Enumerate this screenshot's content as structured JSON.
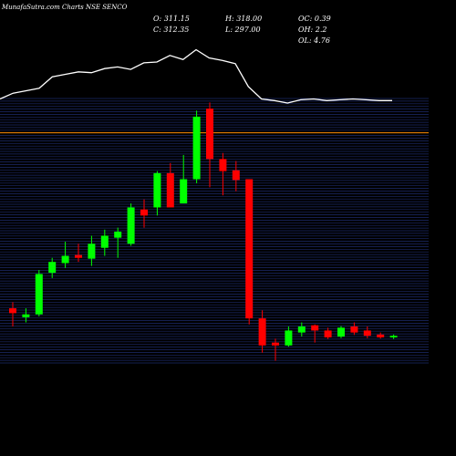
{
  "header": {
    "title": "MunafaSutra.com Charts NSE SENCO",
    "open": "O: 311.15",
    "close": "C: 312.35",
    "high": "H: 318.00",
    "low": "L: 297.00",
    "oc": "OC: 0.39",
    "oh": "OH: 2.2",
    "ol": "OL: 4.76"
  },
  "colors": {
    "background": "#000000",
    "up": "#00ff00",
    "down": "#ff0000",
    "grid": "#1c2a6a",
    "line": "#ffffff",
    "level": "#ff8c00"
  },
  "chart_data": {
    "type": "candlestick",
    "candles": [
      {
        "open": 640,
        "high": 655,
        "low": 595,
        "close": 628
      },
      {
        "open": 618,
        "high": 640,
        "low": 605,
        "close": 625
      },
      {
        "open": 625,
        "high": 735,
        "low": 620,
        "close": 725
      },
      {
        "open": 728,
        "high": 765,
        "low": 715,
        "close": 755
      },
      {
        "open": 752,
        "high": 805,
        "low": 740,
        "close": 770
      },
      {
        "open": 772,
        "high": 800,
        "low": 755,
        "close": 765
      },
      {
        "open": 763,
        "high": 820,
        "low": 745,
        "close": 800
      },
      {
        "open": 790,
        "high": 835,
        "low": 770,
        "close": 820
      },
      {
        "open": 815,
        "high": 840,
        "low": 765,
        "close": 830
      },
      {
        "open": 800,
        "high": 900,
        "low": 795,
        "close": 890
      },
      {
        "open": 885,
        "high": 910,
        "low": 840,
        "close": 870
      },
      {
        "open": 890,
        "high": 980,
        "low": 870,
        "close": 975
      },
      {
        "open": 975,
        "high": 1000,
        "low": 895,
        "close": 890
      },
      {
        "open": 900,
        "high": 1020,
        "low": 900,
        "close": 960
      },
      {
        "open": 960,
        "high": 1130,
        "low": 950,
        "close": 1115
      },
      {
        "open": 1135,
        "high": 1150,
        "low": 940,
        "close": 1010
      },
      {
        "open": 1010,
        "high": 1025,
        "low": 920,
        "close": 980
      },
      {
        "open": 982,
        "high": 1005,
        "low": 930,
        "close": 958
      },
      {
        "open": 960,
        "high": 960,
        "low": 600,
        "close": 615
      },
      {
        "open": 615,
        "high": 635,
        "low": 530,
        "close": 548
      },
      {
        "open": 555,
        "high": 565,
        "low": 510,
        "close": 548
      },
      {
        "open": 548,
        "high": 595,
        "low": 545,
        "close": 585
      },
      {
        "open": 580,
        "high": 605,
        "low": 570,
        "close": 595
      },
      {
        "open": 598,
        "high": 600,
        "low": 555,
        "close": 585
      },
      {
        "open": 585,
        "high": 592,
        "low": 564,
        "close": 568
      },
      {
        "open": 570,
        "high": 596,
        "low": 566,
        "close": 592
      },
      {
        "open": 595,
        "high": 605,
        "low": 574,
        "close": 580
      },
      {
        "open": 585,
        "high": 595,
        "low": 566,
        "close": 572
      },
      {
        "open": 575,
        "high": 580,
        "low": 565,
        "close": 568
      },
      {
        "open": 568,
        "high": 575,
        "low": 564,
        "close": 572
      }
    ],
    "overlay_line": [
      0.35,
      0.42,
      0.45,
      0.48,
      0.62,
      0.65,
      0.68,
      0.67,
      0.72,
      0.74,
      0.71,
      0.79,
      0.8,
      0.88,
      0.83,
      0.95,
      0.85,
      0.82,
      0.78,
      0.5,
      0.35,
      0.33,
      0.3,
      0.34,
      0.35,
      0.33,
      0.34,
      0.35,
      0.34,
      0.33,
      0.33
    ],
    "level_line": 1075,
    "ylim": [
      500,
      1160
    ],
    "grid": true
  }
}
